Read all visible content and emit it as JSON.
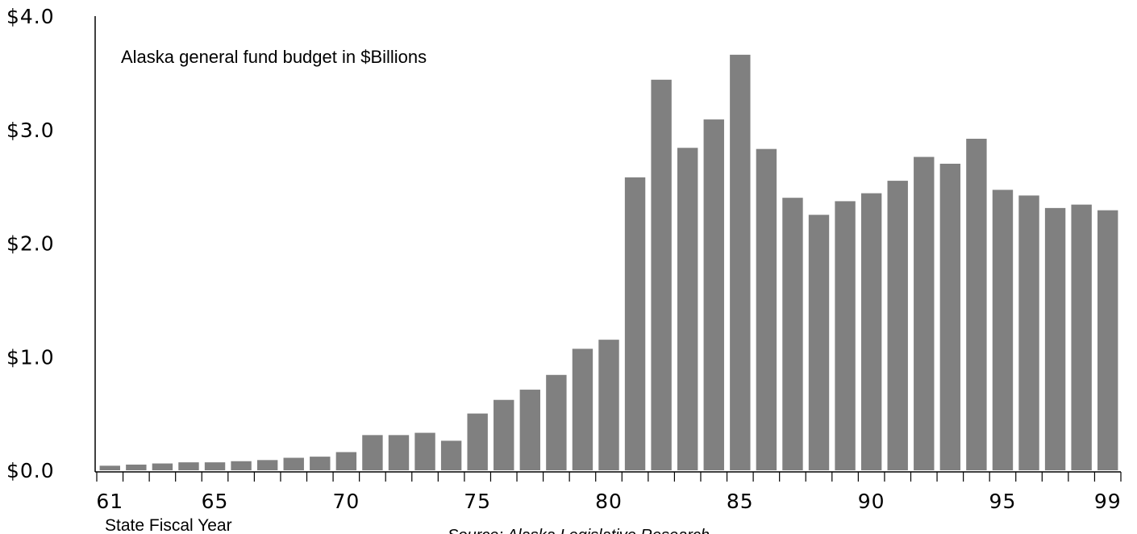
{
  "chart_data": {
    "type": "bar",
    "annotation": "Alaska general fund budget in $Billions",
    "xlabel": "State Fiscal Year",
    "source": "Source: Alaska Legislative Research",
    "ylim": [
      0,
      4
    ],
    "y_ticks": [
      "$0.0",
      "$1.0",
      "$2.0",
      "$3.0",
      "$4.0"
    ],
    "x_tick_labels": [
      "61",
      "65",
      "70",
      "75",
      "80",
      "85",
      "90",
      "95",
      "99"
    ],
    "categories": [
      "61",
      "62",
      "63",
      "64",
      "65",
      "66",
      "67",
      "68",
      "69",
      "70",
      "71",
      "72",
      "73",
      "74",
      "75",
      "76",
      "77",
      "78",
      "79",
      "80",
      "81",
      "82",
      "83",
      "84",
      "85",
      "86",
      "87",
      "88",
      "89",
      "90",
      "91",
      "92",
      "93",
      "94",
      "95",
      "96",
      "97",
      "98",
      "99"
    ],
    "values": [
      0.04,
      0.05,
      0.06,
      0.07,
      0.07,
      0.08,
      0.09,
      0.11,
      0.12,
      0.16,
      0.31,
      0.31,
      0.33,
      0.26,
      0.5,
      0.62,
      0.71,
      0.84,
      1.07,
      1.15,
      2.58,
      3.44,
      2.84,
      3.09,
      3.66,
      2.83,
      2.4,
      2.25,
      2.37,
      2.44,
      2.55,
      2.76,
      2.7,
      2.92,
      2.47,
      2.42,
      2.31,
      2.34,
      2.29
    ],
    "bar_color": "#808080",
    "grid": false
  }
}
